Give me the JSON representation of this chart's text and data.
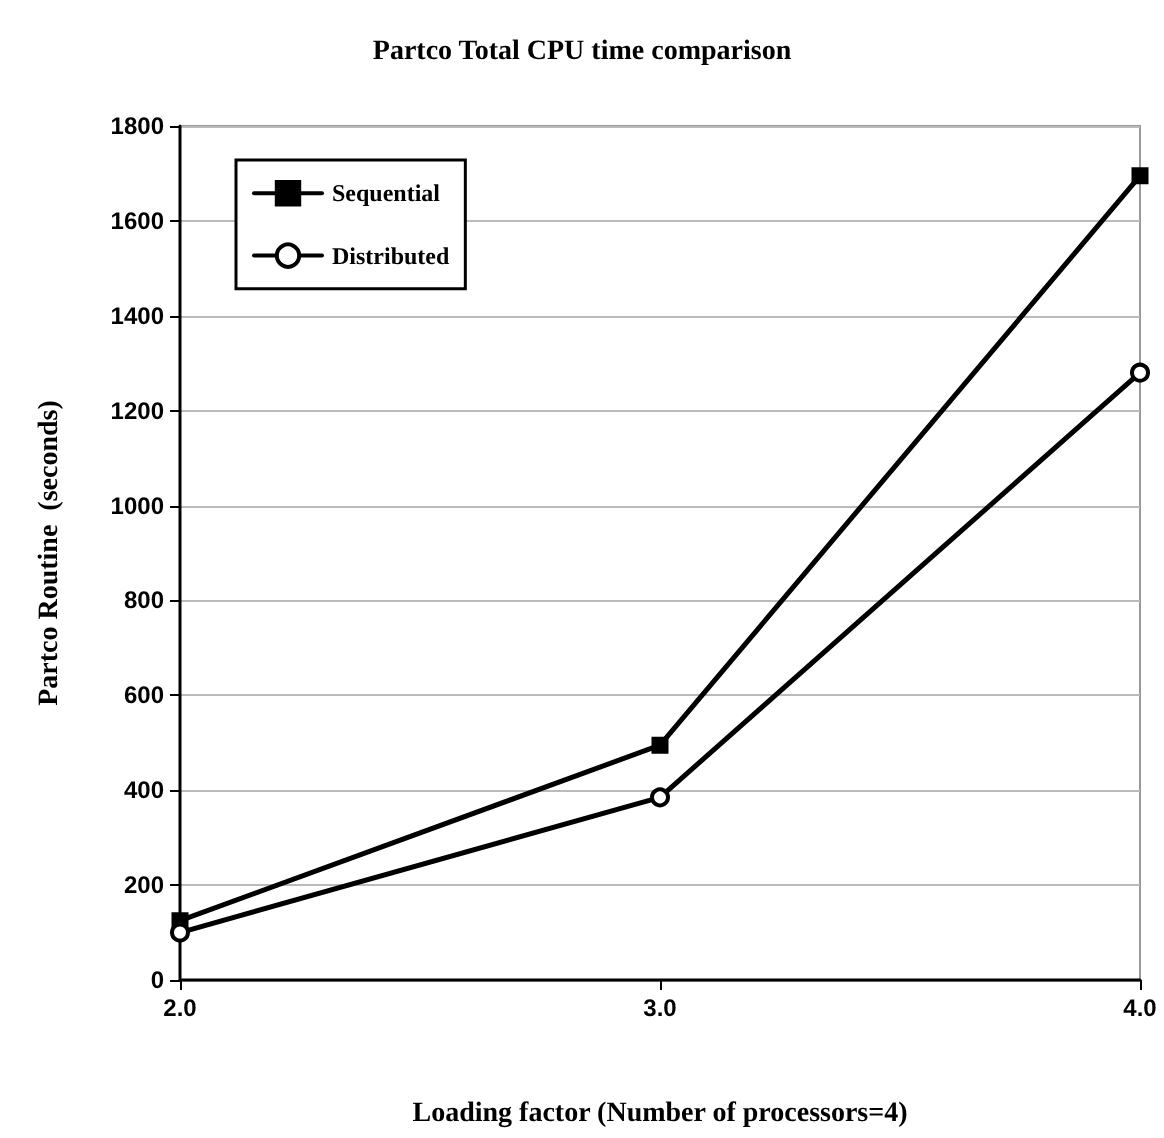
{
  "chart_data": {
    "type": "line",
    "title": "Partco Total CPU time comparison",
    "xlabel": "Loading factor (Number of processors=4)",
    "ylabel": "Partco Routine  (seconds)",
    "x": [
      2,
      3,
      4
    ],
    "series": [
      {
        "name": "Sequential",
        "color": "#000000",
        "values": [
          125,
          495,
          1695
        ],
        "marker": "square"
      },
      {
        "name": "Distributed",
        "color": "#000000",
        "values": [
          100,
          385,
          1280
        ],
        "marker": "circle"
      }
    ],
    "xlim": [
      2,
      4
    ],
    "xticks": [
      {
        "value": 2,
        "label": "2.0"
      },
      {
        "value": 3,
        "label": "3.0"
      },
      {
        "value": 4,
        "label": "4.0"
      }
    ],
    "ylim": [
      0,
      1800
    ],
    "yticks": [
      0,
      200,
      400,
      600,
      800,
      1000,
      1200,
      1400,
      1600,
      1800
    ],
    "grid": "y",
    "legend": "top left",
    "line_style": "solid"
  }
}
